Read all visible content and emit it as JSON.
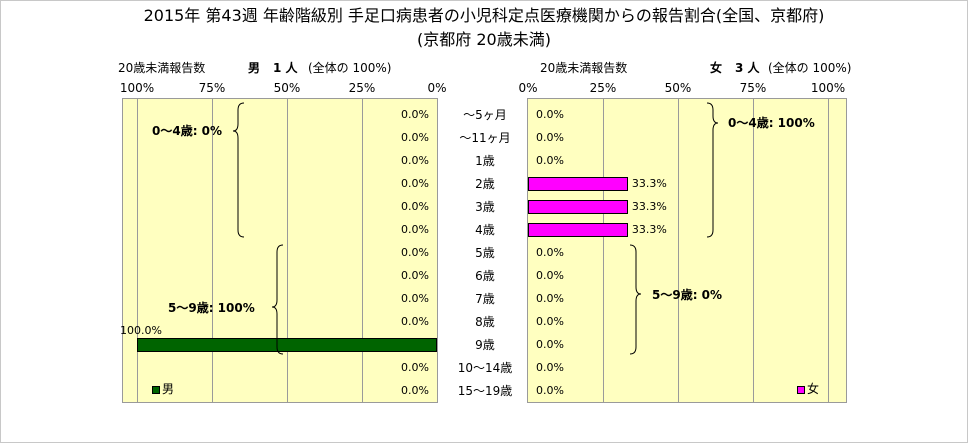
{
  "title": "2015年 第43週 年齢階級別 手足口病患者の小児科定点医療機関からの報告割合(全国、京都府)",
  "subtitle": "(京都府 20歳未満)",
  "male_header": {
    "label": "20歳未満報告数",
    "sex": "男",
    "count": "1 人",
    "note": "(全体の 100%)"
  },
  "female_header": {
    "label": "20歳未満報告数",
    "sex": "女",
    "count": "3 人",
    "note": "(全体の 100%)"
  },
  "male_ticks": [
    "100%",
    "75%",
    "50%",
    "25%",
    "0%"
  ],
  "female_ticks": [
    "0%",
    "25%",
    "50%",
    "75%",
    "100%"
  ],
  "annotations": {
    "male_0_4": "0〜4歳: 0%",
    "male_5_9": "5〜9歳: 100%",
    "female_0_4": "0〜4歳: 100%",
    "female_5_9": "5〜9歳: 0%"
  },
  "legend": {
    "male": "男",
    "female": "女",
    "male_color": "#006400",
    "female_color": "#ff00ff"
  },
  "chart_data": {
    "type": "bar",
    "orientation": "horizontal",
    "categories": [
      "〜5ヶ月",
      "〜11ヶ月",
      "1歳",
      "2歳",
      "3歳",
      "4歳",
      "5歳",
      "6歳",
      "7歳",
      "8歳",
      "9歳",
      "10〜14歳",
      "15〜19歳"
    ],
    "series": [
      {
        "name": "男",
        "values": [
          0,
          0,
          0,
          0,
          0,
          0,
          0,
          0,
          0,
          0,
          100,
          0,
          0
        ],
        "labels": [
          "0.0%",
          "0.0%",
          "0.0%",
          "0.0%",
          "0.0%",
          "0.0%",
          "0.0%",
          "0.0%",
          "0.0%",
          "0.0%",
          "100.0%",
          "0.0%",
          "0.0%"
        ]
      },
      {
        "name": "女",
        "values": [
          0,
          0,
          0,
          33.3,
          33.3,
          33.3,
          0,
          0,
          0,
          0,
          0,
          0,
          0
        ],
        "labels": [
          "0.0%",
          "0.0%",
          "0.0%",
          "33.3%",
          "33.3%",
          "33.3%",
          "0.0%",
          "0.0%",
          "0.0%",
          "0.0%",
          "0.0%",
          "0.0%",
          "0.0%"
        ]
      }
    ],
    "xlim": [
      0,
      100
    ],
    "grid": true,
    "legend_position": "bottom"
  }
}
